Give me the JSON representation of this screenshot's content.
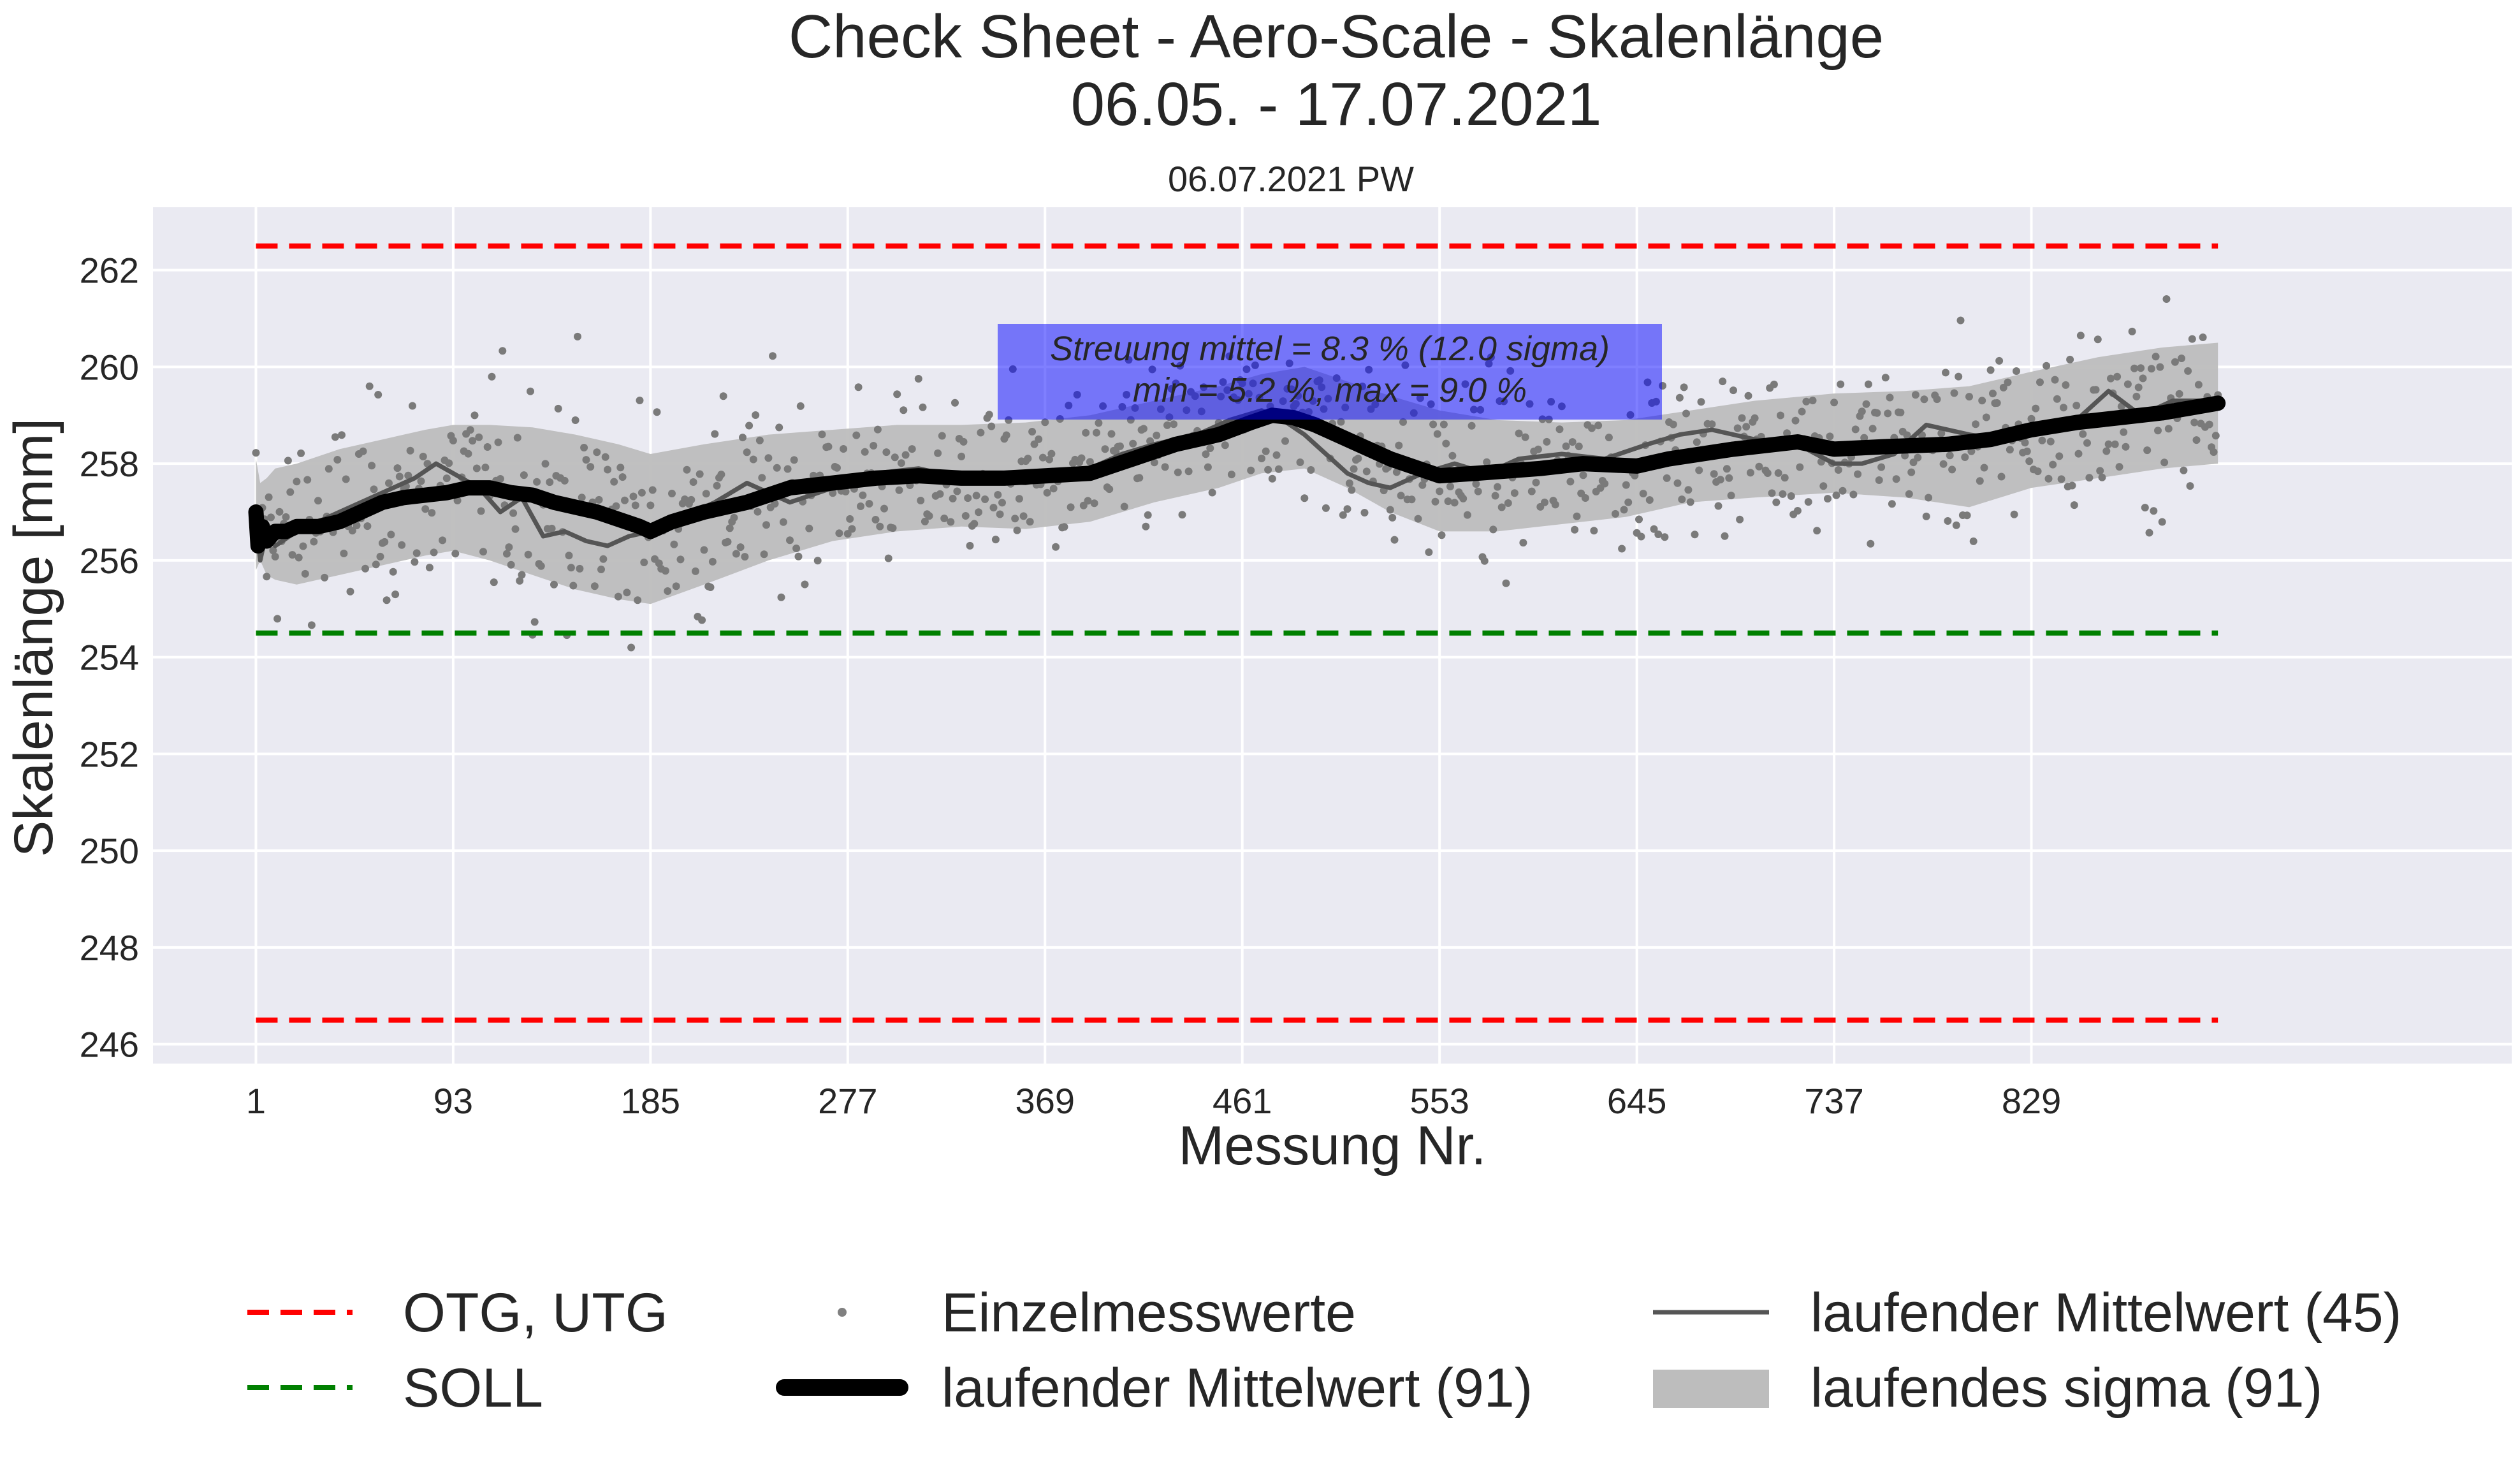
{
  "chart_data": {
    "type": "line",
    "title_lines": [
      "Check Sheet - Aero-Scale - Skalenlänge",
      "06.05. - 17.07.2021"
    ],
    "subtitle": "06.07.2021 PW",
    "xlabel": "Messung Nr.",
    "ylabel": "Skalenlänge [mm]",
    "xlim": [
      -47,
      1053
    ],
    "ylim": [
      245.6,
      263.3
    ],
    "xticks": [
      1,
      93,
      185,
      277,
      369,
      461,
      553,
      645,
      737,
      829
    ],
    "yticks": [
      246,
      248,
      250,
      252,
      254,
      256,
      258,
      260,
      262
    ],
    "grid": true,
    "background": "#eaeaf2",
    "limits": {
      "OTG": 262.5,
      "UTG": 246.5,
      "SOLL": 254.5,
      "x_range": [
        1,
        916
      ],
      "limit_color": "#ff0000",
      "soll_color": "#008000"
    },
    "running_mean_91": {
      "x": [
        1,
        2,
        4,
        6,
        10,
        15,
        20,
        30,
        40,
        50,
        60,
        70,
        80,
        90,
        100,
        110,
        120,
        130,
        140,
        150,
        160,
        170,
        180,
        185,
        195,
        210,
        230,
        250,
        270,
        290,
        310,
        330,
        350,
        370,
        390,
        410,
        430,
        450,
        465,
        475,
        485,
        495,
        510,
        530,
        553,
        570,
        600,
        620,
        645,
        660,
        690,
        720,
        737,
        760,
        790,
        810,
        829,
        850,
        870,
        890,
        916
      ],
      "y": [
        257.0,
        256.3,
        256.7,
        256.4,
        256.6,
        256.6,
        256.7,
        256.7,
        256.8,
        257.0,
        257.2,
        257.3,
        257.35,
        257.4,
        257.5,
        257.5,
        257.4,
        257.35,
        257.2,
        257.1,
        257.0,
        256.85,
        256.7,
        256.6,
        256.8,
        257.0,
        257.2,
        257.5,
        257.6,
        257.7,
        257.75,
        257.7,
        257.7,
        257.75,
        257.8,
        258.1,
        258.4,
        258.6,
        258.85,
        259.0,
        258.95,
        258.8,
        258.5,
        258.1,
        257.75,
        257.8,
        257.9,
        258.0,
        257.95,
        258.1,
        258.3,
        258.45,
        258.3,
        258.35,
        258.4,
        258.5,
        258.7,
        258.85,
        258.95,
        259.05,
        259.25
      ]
    },
    "running_mean_45": {
      "x": [
        1,
        3,
        6,
        10,
        20,
        30,
        40,
        60,
        75,
        85,
        93,
        105,
        115,
        125,
        135,
        145,
        155,
        165,
        175,
        185,
        200,
        215,
        230,
        250,
        270,
        290,
        310,
        330,
        360,
        390,
        405,
        420,
        440,
        455,
        470,
        480,
        490,
        500,
        510,
        520,
        530,
        545,
        560,
        575,
        590,
        610,
        630,
        650,
        665,
        680,
        700,
        720,
        737,
        750,
        765,
        780,
        800,
        815,
        829,
        850,
        865,
        880,
        895,
        916
      ],
      "y": [
        256.8,
        256.0,
        256.6,
        256.3,
        256.6,
        256.8,
        257.0,
        257.4,
        257.7,
        258.0,
        257.8,
        257.5,
        257.0,
        257.3,
        256.5,
        256.6,
        256.4,
        256.3,
        256.5,
        256.6,
        256.9,
        257.2,
        257.6,
        257.2,
        257.5,
        257.8,
        257.9,
        257.7,
        257.6,
        257.9,
        258.2,
        258.4,
        258.6,
        258.9,
        259.1,
        258.9,
        258.6,
        258.2,
        257.8,
        257.6,
        257.5,
        257.8,
        258.0,
        257.8,
        258.1,
        258.2,
        258.1,
        258.4,
        258.6,
        258.7,
        258.5,
        258.4,
        258.0,
        258.0,
        258.2,
        258.8,
        258.6,
        258.5,
        258.8,
        258.9,
        259.5,
        259.0,
        259.3,
        259.3
      ]
    },
    "running_sigma_91": {
      "x": [
        1,
        3,
        6,
        10,
        20,
        40,
        60,
        80,
        93,
        110,
        130,
        150,
        170,
        185,
        210,
        240,
        270,
        300,
        330,
        360,
        390,
        420,
        450,
        470,
        490,
        510,
        530,
        553,
        580,
        610,
        640,
        670,
        700,
        737,
        770,
        800,
        829,
        860,
        890,
        916
      ],
      "upper": [
        258.1,
        257.6,
        257.7,
        257.9,
        258.0,
        258.3,
        258.5,
        258.7,
        258.8,
        258.8,
        258.75,
        258.6,
        258.4,
        258.2,
        258.4,
        258.6,
        258.7,
        258.8,
        258.8,
        258.85,
        259.0,
        259.3,
        259.6,
        259.85,
        260.0,
        259.7,
        259.4,
        259.1,
        258.9,
        258.85,
        258.9,
        259.1,
        259.3,
        259.45,
        259.5,
        259.6,
        259.9,
        260.2,
        260.4,
        260.5
      ],
      "lower": [
        255.8,
        256.0,
        255.7,
        255.6,
        255.5,
        255.7,
        255.9,
        256.1,
        256.2,
        256.0,
        255.7,
        255.4,
        255.2,
        255.1,
        255.5,
        256.0,
        256.4,
        256.6,
        256.7,
        256.65,
        256.8,
        257.2,
        257.5,
        257.8,
        257.9,
        257.5,
        257.0,
        256.6,
        256.6,
        256.75,
        256.9,
        257.2,
        257.3,
        257.4,
        257.3,
        257.1,
        257.5,
        257.7,
        257.9,
        258.0
      ]
    },
    "single_values": {
      "name": "Einzelmesswerte",
      "count": 916,
      "note": "individual points scattered around the running mean"
    },
    "annotation": {
      "lines": [
        "Streuung mittel = 8.3 % (12.0 sigma)",
        "min = 5.2 %,   max = 9.0 %"
      ],
      "color": "#0000ff"
    },
    "legend": {
      "placement": "bottom",
      "items": [
        {
          "label": "OTG, UTG",
          "kind": "dashed",
          "color": "#ff0000"
        },
        {
          "label": "SOLL",
          "kind": "dashed",
          "color": "#008000"
        },
        {
          "label": "Einzelmesswerte",
          "kind": "dot",
          "color": "#808080"
        },
        {
          "label": "laufender Mittelwert (91)",
          "kind": "thick",
          "color": "#000000"
        },
        {
          "label": "laufender Mittelwert (45)",
          "kind": "thin",
          "color": "#555555"
        },
        {
          "label": "laufendes sigma (91)",
          "kind": "patch",
          "color": "#bdbdbd"
        }
      ]
    }
  }
}
